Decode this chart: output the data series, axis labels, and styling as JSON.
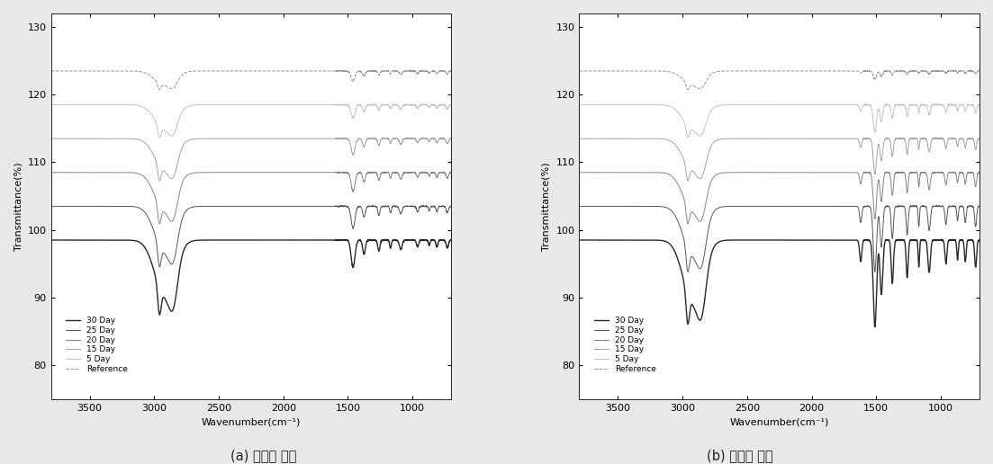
{
  "subplot_a_title": "(a) 지지층 소재",
  "subplot_b_title": "(b) 표면층 소재",
  "xlabel": "Wavenumber(cm⁻¹)",
  "ylabel": "Transmittance(%)",
  "xlim": [
    3800,
    700
  ],
  "ylim": [
    75,
    132
  ],
  "yticks": [
    80,
    90,
    100,
    110,
    120,
    130
  ],
  "xticks": [
    3500,
    3000,
    2500,
    2000,
    1500,
    1000
  ],
  "legend_labels": [
    "30 Day",
    "25 Day",
    "20 Day",
    "15 Day",
    "5 Day",
    "Reference"
  ],
  "offsets_a": [
    0,
    5,
    10,
    15,
    20,
    25
  ],
  "offsets_b": [
    0,
    5,
    10,
    15,
    20,
    25
  ],
  "base_level": 98.5,
  "colors_a": [
    "#111111",
    "#444444",
    "#777777",
    "#999999",
    "#bbbbbb",
    "#888888"
  ],
  "colors_b": [
    "#111111",
    "#444444",
    "#777777",
    "#999999",
    "#bbbbbb",
    "#888888"
  ],
  "linestyles": [
    "-",
    "-",
    "-",
    "-",
    "-",
    "--"
  ],
  "linewidths_a": [
    1.0,
    0.7,
    0.7,
    0.7,
    0.7,
    0.7
  ],
  "linewidths_b": [
    1.0,
    0.7,
    0.7,
    0.7,
    0.7,
    0.7
  ],
  "figure_bg": "#e8e8e8",
  "plot_bg": "#ffffff"
}
